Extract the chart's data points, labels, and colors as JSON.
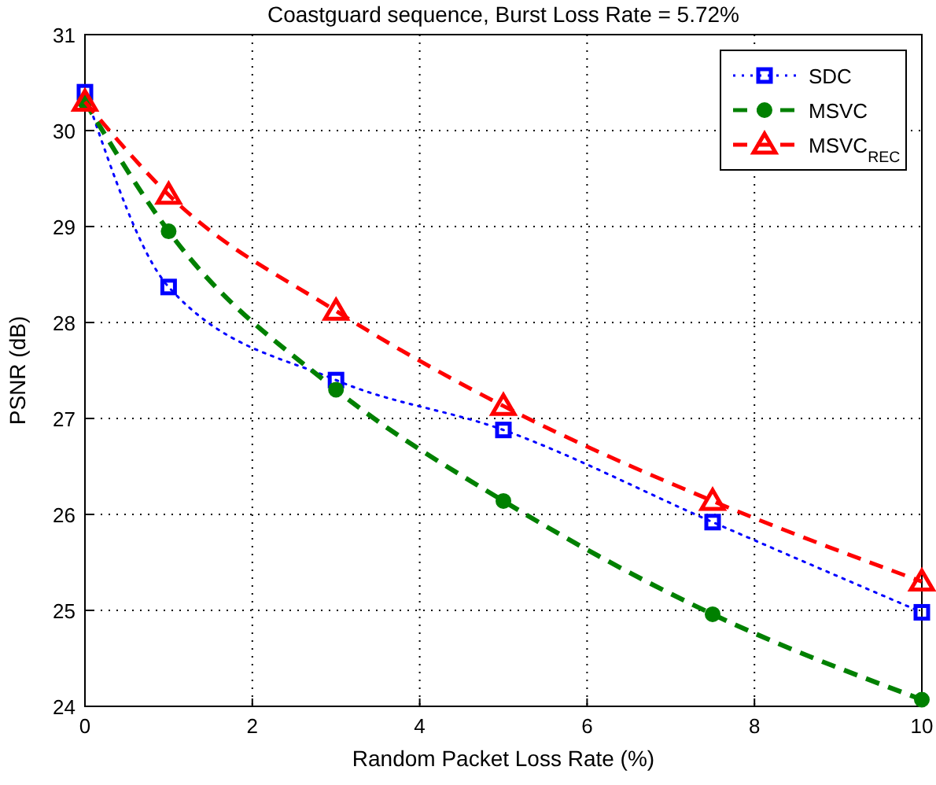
{
  "chart_data": {
    "type": "line",
    "title": "Coastguard sequence, Burst Loss Rate = 5.72%",
    "xlabel": "Random Packet Loss Rate (%)",
    "ylabel": "PSNR (dB)",
    "x": [
      0,
      1,
      3,
      5,
      7.5,
      10
    ],
    "series": [
      {
        "name": "SDC",
        "color": "#0000ff",
        "marker": "square",
        "line_style": "dotted",
        "values": [
          30.4,
          28.37,
          27.4,
          26.88,
          25.92,
          24.98
        ]
      },
      {
        "name": "MSVC",
        "color": "#008000",
        "marker": "circle",
        "line_style": "dashed",
        "values": [
          30.3,
          28.95,
          27.3,
          26.14,
          24.96,
          24.07
        ]
      },
      {
        "name": "MSVC$_{REC}$",
        "color": "#ff0000",
        "marker": "triangle",
        "line_style": "dashed",
        "values": [
          30.3,
          29.33,
          28.12,
          27.13,
          26.14,
          25.3
        ]
      }
    ],
    "xlim": [
      0,
      10
    ],
    "xticks": [
      0,
      2,
      4,
      6,
      8,
      10
    ],
    "ylim": [
      24,
      31
    ],
    "yticks": [
      24,
      25,
      26,
      27,
      28,
      29,
      30,
      31
    ],
    "grid": true,
    "legend": "top right"
  }
}
